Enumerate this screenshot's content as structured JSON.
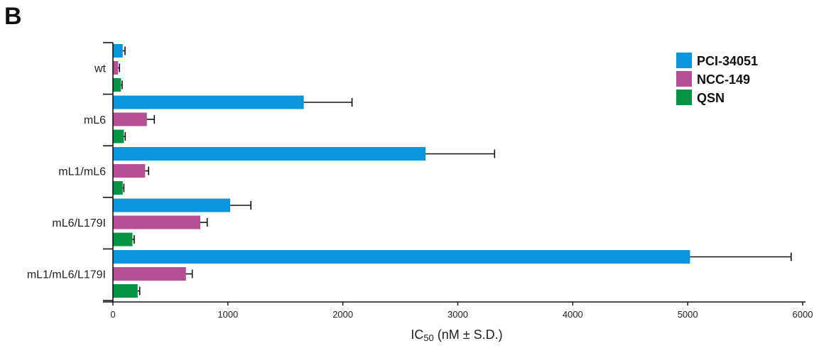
{
  "panel_letter": "B",
  "chart_data": {
    "type": "bar",
    "orientation": "horizontal",
    "categories": [
      "wt",
      "mL6",
      "mL1/mL6",
      "mL6/L179I",
      "mL1/mL6/L179I"
    ],
    "series": [
      {
        "name": "PCI-34051",
        "color": "#0a95dd",
        "values": [
          85,
          1660,
          2720,
          1020,
          5020
        ],
        "errors": [
          20,
          420,
          600,
          180,
          880
        ]
      },
      {
        "name": "NCC-149",
        "color": "#b64f93",
        "values": [
          45,
          295,
          280,
          760,
          635
        ],
        "errors": [
          12,
          65,
          30,
          60,
          55
        ]
      },
      {
        "name": "QSN",
        "color": "#069444",
        "values": [
          70,
          95,
          85,
          170,
          215
        ],
        "errors": [
          10,
          12,
          10,
          15,
          18
        ]
      }
    ],
    "xlabel": "IC50 (nM ± S.D.)",
    "xlabel_main": "IC",
    "xlabel_sub": "50",
    "xlabel_suffix": " (nM ± S.D.)",
    "xlim": [
      0,
      6000
    ],
    "xticks": [
      0,
      1000,
      2000,
      3000,
      4000,
      5000,
      6000
    ],
    "xtick_labels": [
      "0",
      "1000",
      "2000",
      "3000",
      "4000",
      "5000",
      "6000"
    ],
    "grid": false,
    "legend_position": "top-right",
    "error_bars": "one-sided, plus S.D."
  }
}
